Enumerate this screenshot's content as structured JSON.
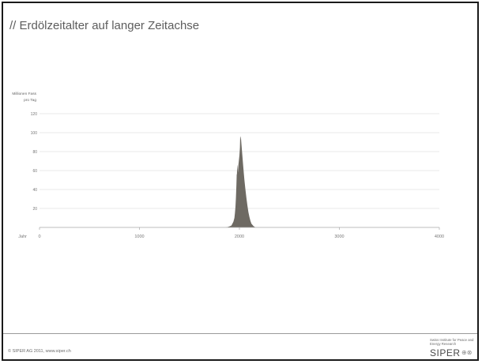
{
  "slide": {
    "title": "// Erdölzeitalter auf langer Zeitachse"
  },
  "chart_data": {
    "type": "area",
    "title": "// Erdölzeitalter auf langer Zeitachse",
    "ylabel_line1": "Millionen Fass",
    "ylabel_line2": "pro Tag",
    "xlabel": "Jahr",
    "xlim": [
      0,
      4000
    ],
    "ylim": [
      0,
      120
    ],
    "x_ticks": [
      0,
      1000,
      2000,
      3000,
      4000
    ],
    "y_ticks": [
      20,
      40,
      60,
      80,
      100,
      120
    ],
    "grid": true,
    "color": "#6e6a63",
    "x": [
      1860,
      1880,
      1900,
      1920,
      1930,
      1940,
      1945,
      1950,
      1955,
      1960,
      1965,
      1970,
      1973,
      1975,
      1978,
      1980,
      1985,
      1990,
      1995,
      2000,
      2005,
      2008,
      2010,
      2012,
      2015,
      2020,
      2030,
      2040,
      2050,
      2060,
      2070,
      2080,
      2090,
      2100,
      2110,
      2120,
      2140,
      2160
    ],
    "y": [
      0,
      0.3,
      1,
      2,
      4,
      6,
      8,
      10,
      15,
      21,
      31,
      45,
      56,
      56,
      66,
      65,
      58,
      66,
      71,
      76,
      84,
      97,
      92,
      96,
      95,
      88,
      75,
      62,
      50,
      40,
      31,
      23,
      16,
      11,
      7,
      4,
      1.5,
      0
    ]
  },
  "footer": {
    "copyright": "© SIPER AG 2011, www.siper.ch",
    "logo_subtitle": "Swiss Institute for Peace and Energy Research",
    "logo_wordmark": "SIPER",
    "logo_marks": "⊕⊗"
  }
}
